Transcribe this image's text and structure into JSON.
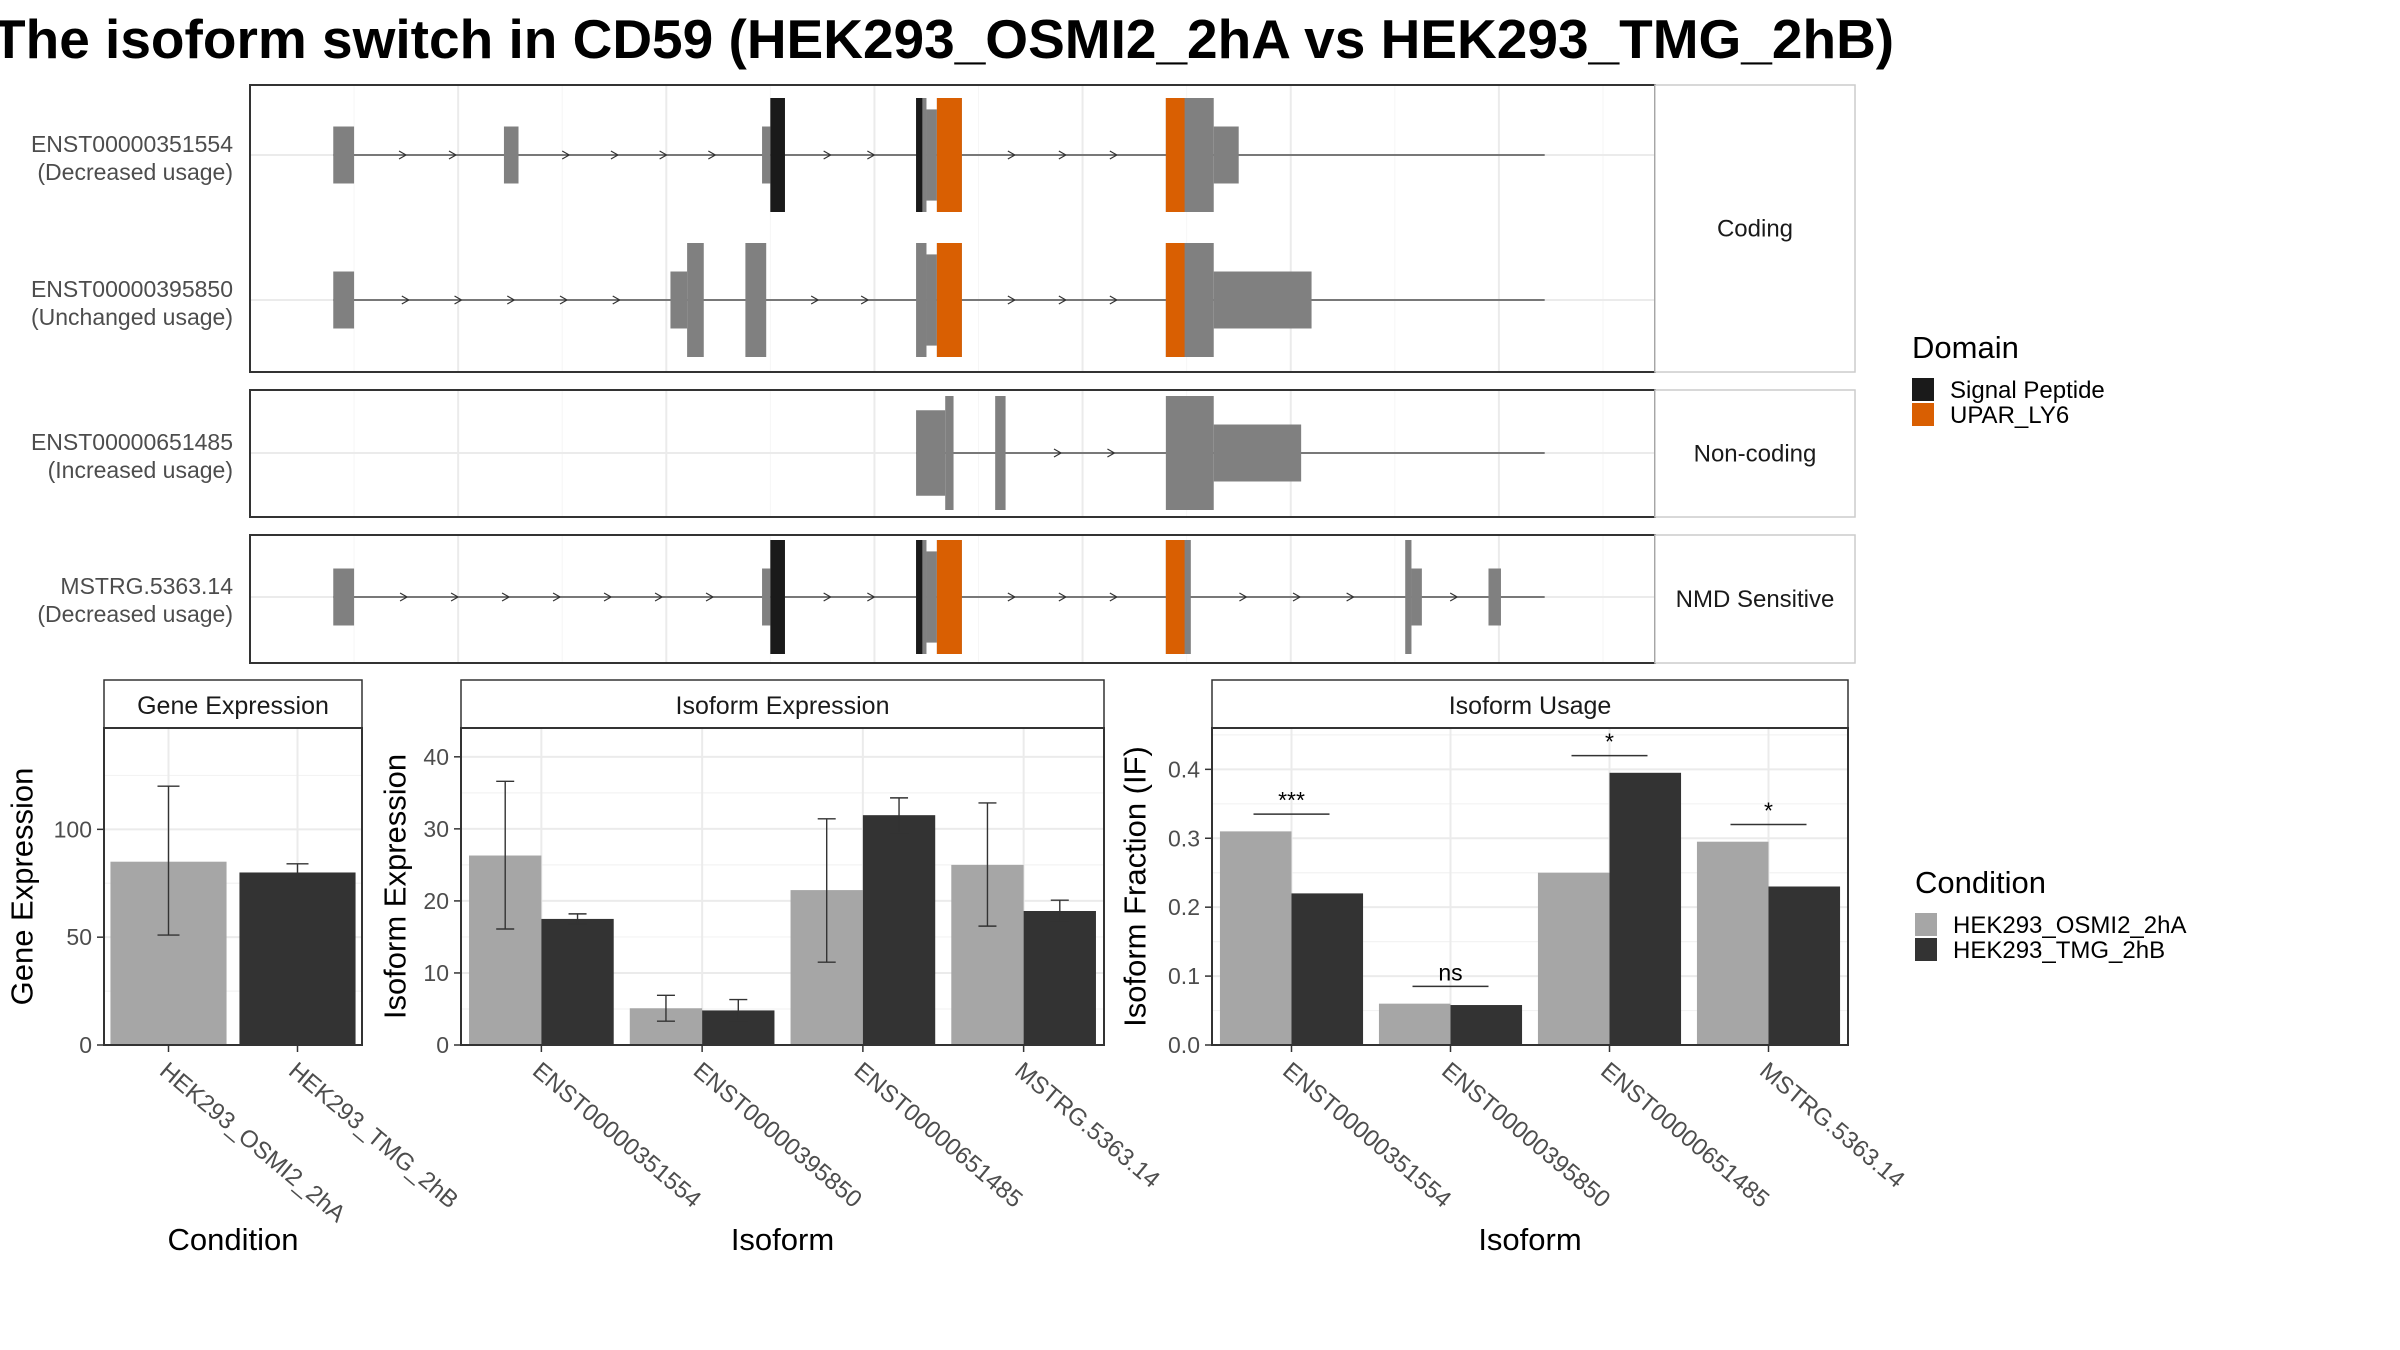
{
  "title": "The isoform switch in CD59 (HEK293_OSMI2_2hA vs HEK293_TMG_2hB)",
  "colors": {
    "exon": "#808080",
    "signal_peptide": "#1a1a1a",
    "upar_ly6": "#d95f02",
    "cond_a": "#a6a6a6",
    "cond_b": "#333333"
  },
  "structure": {
    "panels": [
      {
        "label": "Coding",
        "transcripts": [
          {
            "name": "ENST00000351554",
            "usage": "(Decreased usage)",
            "intron": [
              40,
              622
            ],
            "exons": [
              [
                40,
                50,
                0.5
              ],
              [
                122,
                129,
                0.5
              ],
              [
                246,
                250,
                0.5
              ],
              [
                250,
                257,
                1
              ],
              [
                320,
                325,
                1
              ],
              [
                325,
                330,
                0.8
              ],
              [
                330,
                342,
                1
              ],
              [
                440,
                448,
                1
              ],
              [
                448,
                463,
                1
              ],
              [
                463,
                475,
                0.5
              ]
            ],
            "domains": [
              [
                250,
                257,
                "signal_peptide"
              ],
              [
                320,
                323,
                "signal_peptide"
              ],
              [
                330,
                342,
                "upar_ly6"
              ],
              [
                440,
                449,
                "upar_ly6"
              ]
            ]
          },
          {
            "name": "ENST00000395850",
            "usage": "(Unchanged usage)",
            "intron": [
              40,
              622
            ],
            "exons": [
              [
                40,
                50,
                0.5
              ],
              [
                202,
                210,
                0.5
              ],
              [
                210,
                218,
                1
              ],
              [
                238,
                248,
                1
              ],
              [
                320,
                325,
                1
              ],
              [
                325,
                330,
                0.8
              ],
              [
                330,
                342,
                1
              ],
              [
                440,
                448,
                1
              ],
              [
                448,
                463,
                1
              ],
              [
                463,
                510,
                0.5
              ]
            ],
            "domains": [
              [
                330,
                342,
                "upar_ly6"
              ],
              [
                440,
                449,
                "upar_ly6"
              ]
            ]
          }
        ]
      },
      {
        "label": "Non-coding",
        "transcripts": [
          {
            "name": "ENST00000651485",
            "usage": "(Increased usage)",
            "intron": [
              320,
              622
            ],
            "exons": [
              [
                320,
                334,
                0.75
              ],
              [
                334,
                338,
                1
              ],
              [
                358,
                363,
                1
              ],
              [
                440,
                463,
                1
              ],
              [
                463,
                505,
                0.5
              ]
            ],
            "domains": []
          }
        ]
      },
      {
        "label": "NMD Sensitive",
        "transcripts": [
          {
            "name": "MSTRG.5363.14",
            "usage": "(Decreased usage)",
            "intron": [
              40,
              622
            ],
            "exons": [
              [
                40,
                50,
                0.5
              ],
              [
                246,
                250,
                0.5
              ],
              [
                250,
                257,
                1
              ],
              [
                320,
                325,
                1
              ],
              [
                325,
                330,
                0.8
              ],
              [
                330,
                342,
                1
              ],
              [
                440,
                448,
                1
              ],
              [
                448,
                452,
                1
              ],
              [
                555,
                558,
                1
              ],
              [
                558,
                563,
                0.5
              ],
              [
                595,
                601,
                0.5
              ]
            ],
            "domains": [
              [
                250,
                257,
                "signal_peptide"
              ],
              [
                320,
                323,
                "signal_peptide"
              ],
              [
                330,
                342,
                "upar_ly6"
              ],
              [
                440,
                449,
                "upar_ly6"
              ]
            ]
          }
        ]
      }
    ],
    "domain_legend": {
      "title": "Domain",
      "items": [
        {
          "label": "Signal Peptide",
          "color": "#1a1a1a"
        },
        {
          "label": "UPAR_LY6",
          "color": "#d95f02"
        }
      ]
    }
  },
  "condition_legend": {
    "title": "Condition",
    "items": [
      {
        "label": "HEK293_OSMI2_2hA",
        "color": "#a6a6a6"
      },
      {
        "label": "HEK293_TMG_2hB",
        "color": "#333333"
      }
    ]
  },
  "chart_data": [
    {
      "type": "bar",
      "title": "Gene Expression",
      "xlabel": "Condition",
      "ylabel": "Gene Expression",
      "categories": [
        "HEK293_OSMI2_2hA",
        "HEK293_TMG_2hB"
      ],
      "values": [
        85,
        80
      ],
      "error_low": [
        51,
        77
      ],
      "error_high": [
        120,
        84
      ],
      "ylim": [
        0,
        147
      ],
      "yticks": [
        0,
        50,
        100
      ],
      "grid": true
    },
    {
      "type": "bar",
      "title": "Isoform Expression",
      "xlabel": "Isoform",
      "ylabel": "Isoform Expression",
      "categories": [
        "ENST00000351554",
        "ENST00000395850",
        "ENST00000651485",
        "MSTRG.5363.14"
      ],
      "series": [
        {
          "name": "HEK293_OSMI2_2hA",
          "values": [
            26.3,
            5.1,
            21.5,
            25.0
          ],
          "error_low": [
            16.1,
            3.3,
            11.5,
            16.5
          ],
          "error_high": [
            36.6,
            6.9,
            31.4,
            33.6
          ]
        },
        {
          "name": "HEK293_TMG_2hB",
          "values": [
            17.5,
            4.8,
            31.9,
            18.6
          ],
          "error_low": [
            16.8,
            3.3,
            29.4,
            17.1
          ],
          "error_high": [
            18.2,
            6.3,
            34.3,
            20.1
          ]
        }
      ],
      "ylim": [
        0,
        44
      ],
      "yticks": [
        0,
        10,
        20,
        30,
        40
      ],
      "grid": true
    },
    {
      "type": "bar",
      "title": "Isoform Usage",
      "xlabel": "Isoform",
      "ylabel": "Isoform Fraction (IF)",
      "categories": [
        "ENST00000351554",
        "ENST00000395850",
        "ENST00000651485",
        "MSTRG.5363.14"
      ],
      "series": [
        {
          "name": "HEK293_OSMI2_2hA",
          "values": [
            0.31,
            0.06,
            0.25,
            0.295
          ]
        },
        {
          "name": "HEK293_TMG_2hB",
          "values": [
            0.22,
            0.058,
            0.395,
            0.23
          ]
        }
      ],
      "significance": [
        "***",
        "ns",
        "*",
        "*"
      ],
      "ylim": [
        0,
        0.46
      ],
      "yticks": [
        0.0,
        0.1,
        0.2,
        0.3,
        0.4
      ],
      "ytick_labels": [
        "0.0",
        "0.1",
        "0.2",
        "0.3",
        "0.4"
      ],
      "grid": true
    }
  ]
}
